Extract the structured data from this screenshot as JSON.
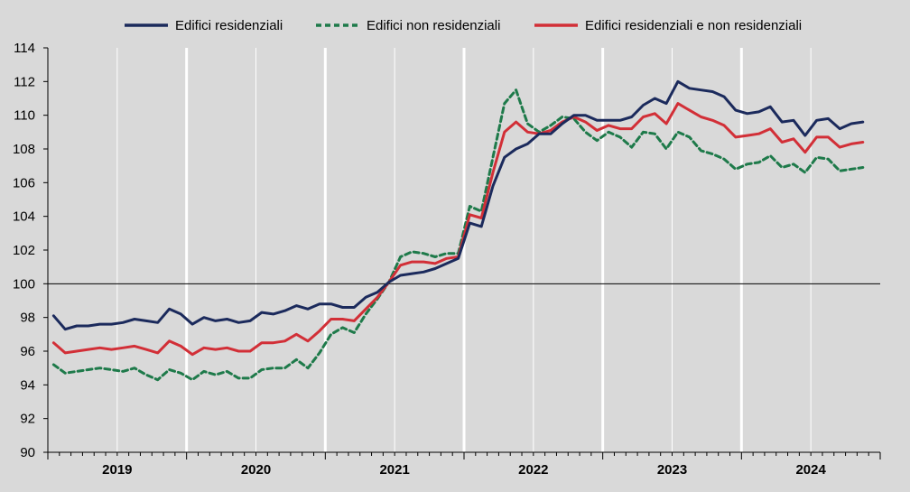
{
  "chart_data": {
    "type": "line",
    "title": "",
    "xlabel": "",
    "ylabel": "",
    "ylim": [
      90,
      114
    ],
    "yticks": [
      90,
      92,
      94,
      96,
      98,
      100,
      102,
      104,
      106,
      108,
      110,
      112,
      114
    ],
    "reference_line": 100,
    "grid": "vertical",
    "legend_position": "top",
    "x_start": "2019-01",
    "x_end": "2024-09",
    "year_labels": [
      "2019",
      "2020",
      "2021",
      "2022",
      "2023",
      "2024"
    ],
    "series": [
      {
        "name": "Edifici residenziali",
        "color": "#1b2a5c",
        "style": "solid",
        "values": [
          98.1,
          97.3,
          97.5,
          97.5,
          97.6,
          97.6,
          97.7,
          97.9,
          97.8,
          97.7,
          98.5,
          98.2,
          97.6,
          98.0,
          97.8,
          97.9,
          97.7,
          97.8,
          98.3,
          98.2,
          98.4,
          98.7,
          98.5,
          98.8,
          98.8,
          98.6,
          98.6,
          99.2,
          99.5,
          100.1,
          100.5,
          100.6,
          100.7,
          100.9,
          101.2,
          101.5,
          103.6,
          103.4,
          105.8,
          107.5,
          108.0,
          108.3,
          108.9,
          108.9,
          109.5,
          110.0,
          110.0,
          109.7,
          109.7,
          109.7,
          109.9,
          110.6,
          111.0,
          110.7,
          112.0,
          111.6,
          111.5,
          111.4,
          111.1,
          110.3,
          110.1,
          110.2,
          110.5,
          109.6,
          109.7,
          108.8,
          109.7,
          109.8,
          109.2,
          109.5,
          109.6
        ]
      },
      {
        "name": "Edifici non residenziali",
        "color": "#1e7a4a",
        "style": "dashed",
        "values": [
          95.2,
          94.7,
          94.8,
          94.9,
          95.0,
          94.9,
          94.8,
          95.0,
          94.6,
          94.3,
          94.9,
          94.7,
          94.3,
          94.8,
          94.6,
          94.8,
          94.4,
          94.4,
          94.9,
          95.0,
          95.0,
          95.5,
          95.0,
          95.9,
          97.0,
          97.4,
          97.1,
          98.2,
          99.1,
          100.1,
          101.6,
          101.9,
          101.8,
          101.6,
          101.8,
          101.8,
          104.6,
          104.3,
          107.5,
          110.7,
          111.5,
          109.5,
          109.0,
          109.4,
          109.9,
          109.8,
          109.0,
          108.5,
          109.0,
          108.7,
          108.1,
          109.0,
          108.9,
          108.0,
          109.0,
          108.7,
          107.9,
          107.7,
          107.4,
          106.8,
          107.1,
          107.2,
          107.6,
          106.9,
          107.1,
          106.6,
          107.5,
          107.4,
          106.7,
          106.8,
          106.9
        ]
      },
      {
        "name": "Edifici residenziali e non residenziali",
        "color": "#d22f37",
        "style": "solid",
        "values": [
          96.5,
          95.9,
          96.0,
          96.1,
          96.2,
          96.1,
          96.2,
          96.3,
          96.1,
          95.9,
          96.6,
          96.3,
          95.8,
          96.2,
          96.1,
          96.2,
          96.0,
          96.0,
          96.5,
          96.5,
          96.6,
          97.0,
          96.6,
          97.2,
          97.9,
          97.9,
          97.8,
          98.5,
          99.2,
          100.1,
          101.1,
          101.3,
          101.3,
          101.2,
          101.5,
          101.6,
          104.1,
          103.9,
          106.6,
          109.0,
          109.6,
          109.0,
          108.9,
          109.1,
          109.6,
          109.9,
          109.6,
          109.1,
          109.4,
          109.2,
          109.2,
          109.9,
          110.1,
          109.5,
          110.7,
          110.3,
          109.9,
          109.7,
          109.4,
          108.7,
          108.8,
          108.9,
          109.2,
          108.4,
          108.6,
          107.8,
          108.7,
          108.7,
          108.1,
          108.3,
          108.4
        ]
      }
    ]
  }
}
